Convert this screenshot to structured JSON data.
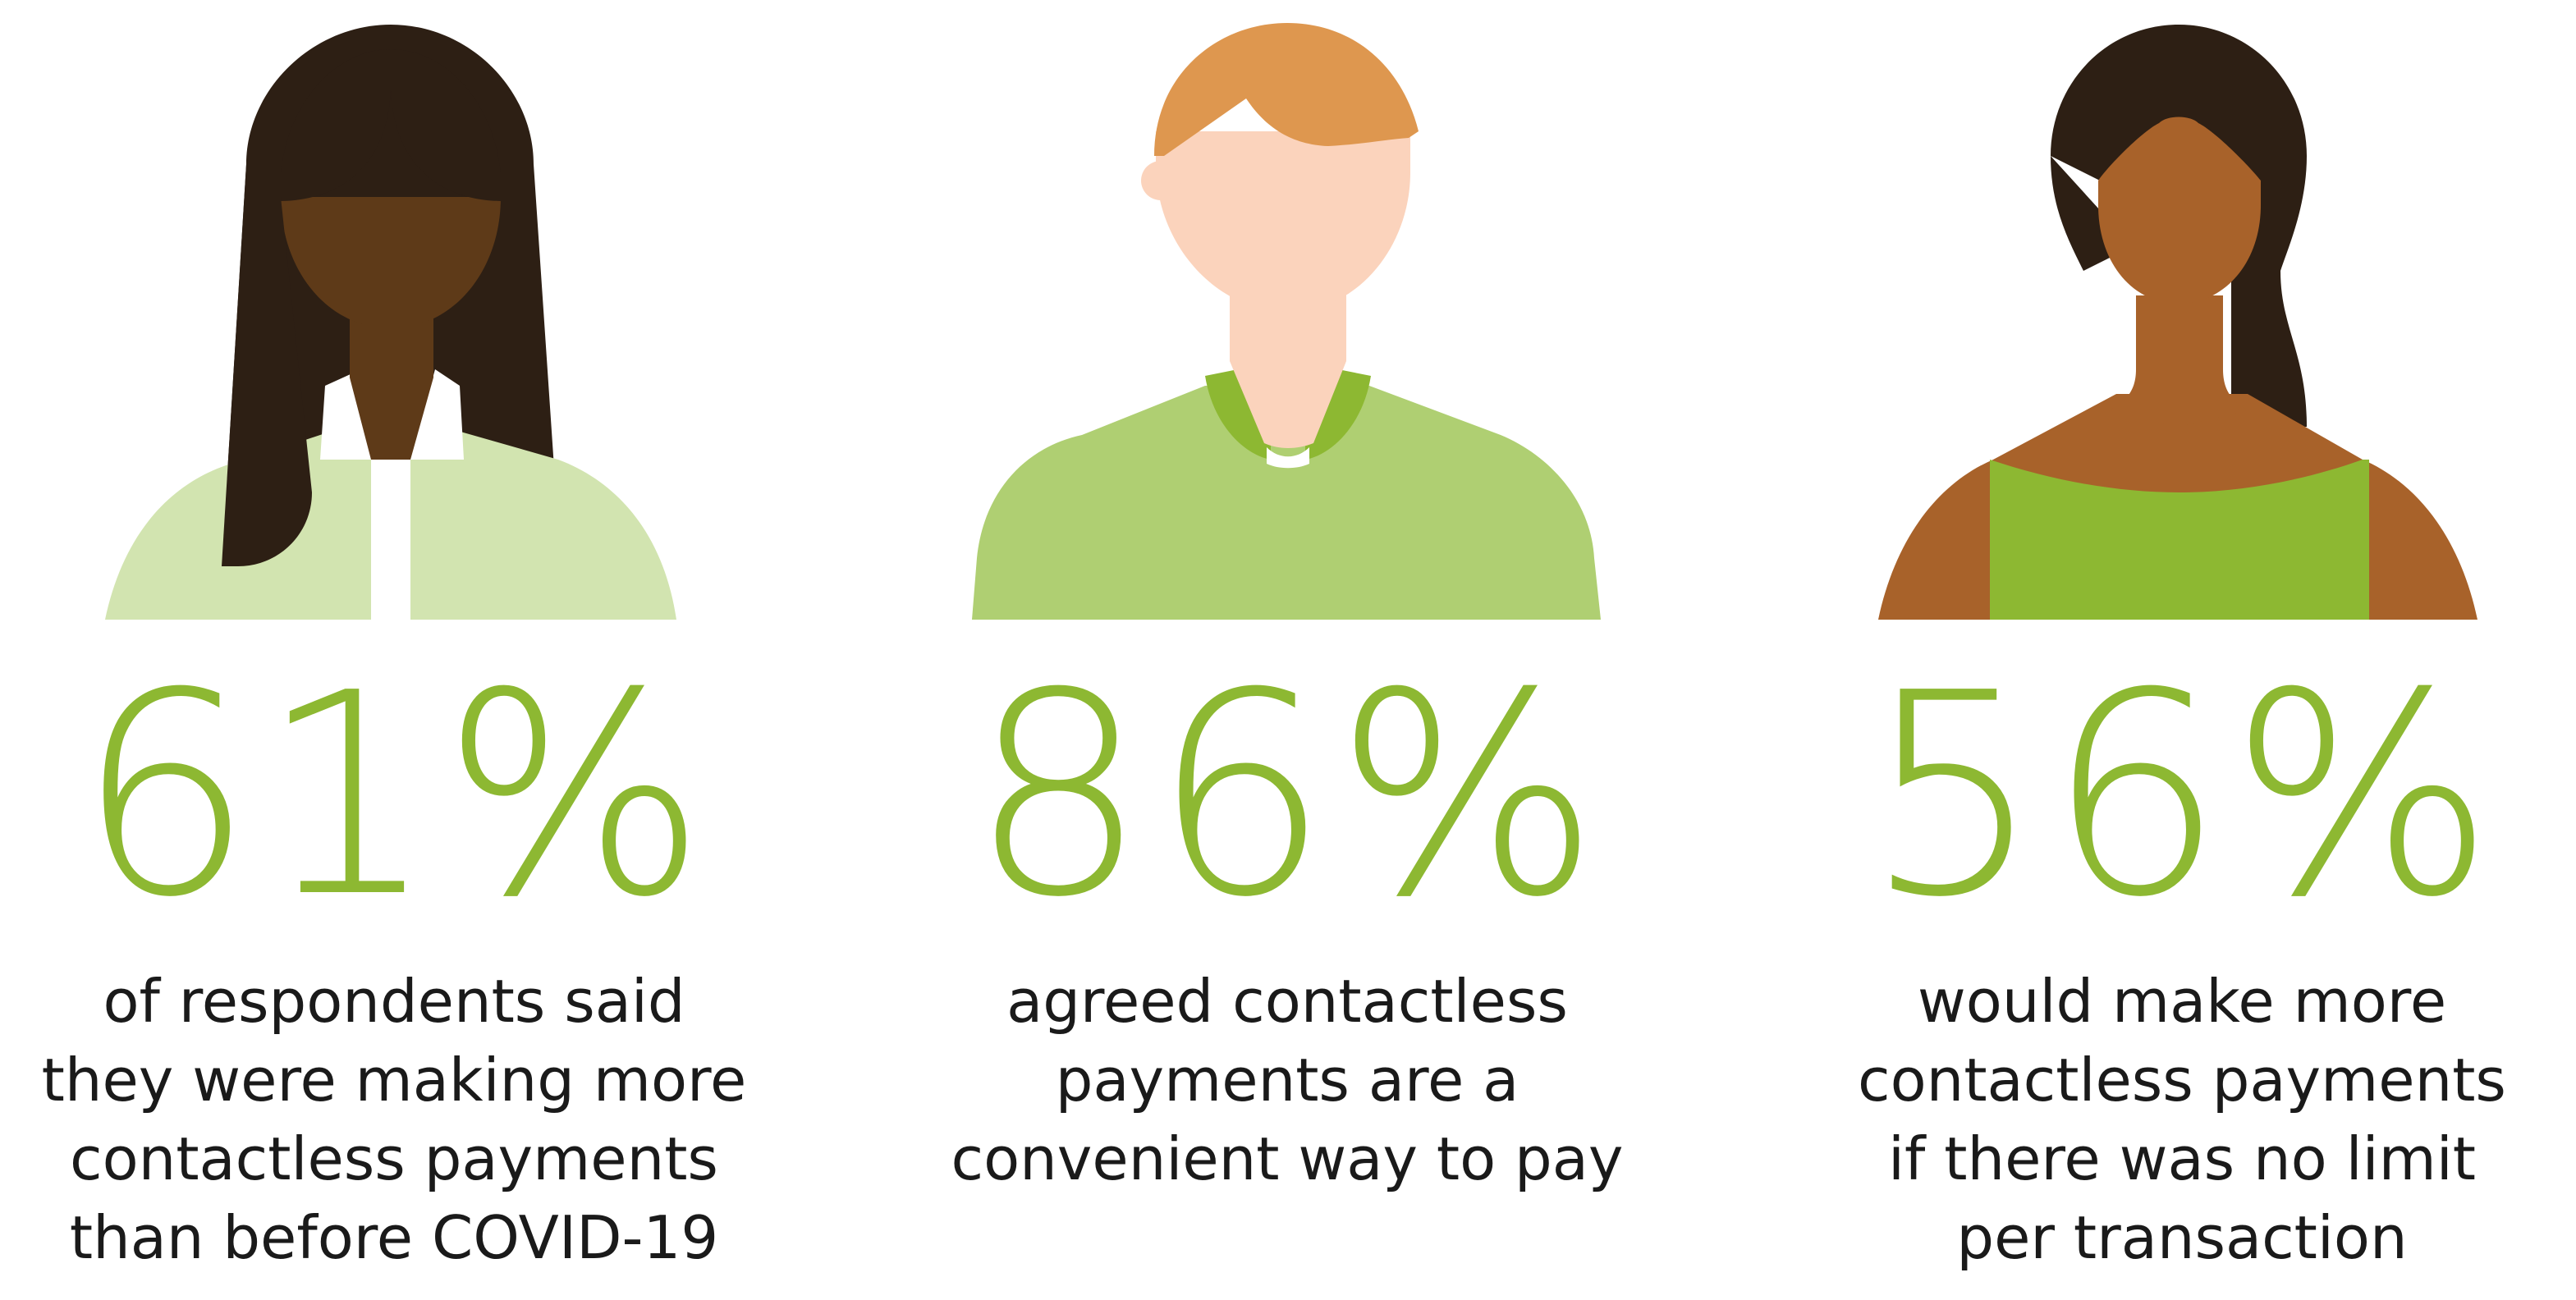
{
  "colors": {
    "accent_green": "#8db832",
    "text": "#1a1a1a",
    "light_green": "#d2e4b0",
    "mid_green": "#afcf72"
  },
  "stats": [
    {
      "avatar_icon": "woman-long-hair-icon",
      "value": "61%",
      "caption_lines": [
        "of respondents said",
        "they were making more",
        "contactless payments",
        "than before COVID-19"
      ]
    },
    {
      "avatar_icon": "man-short-hair-icon",
      "value": "86%",
      "caption_lines": [
        "agreed contactless",
        "payments are a",
        "convenient way to pay"
      ]
    },
    {
      "avatar_icon": "woman-bun-hair-icon",
      "value": "56%",
      "caption_lines": [
        "would make more",
        "contactless payments",
        "if there was no limit",
        "per transaction"
      ]
    }
  ]
}
